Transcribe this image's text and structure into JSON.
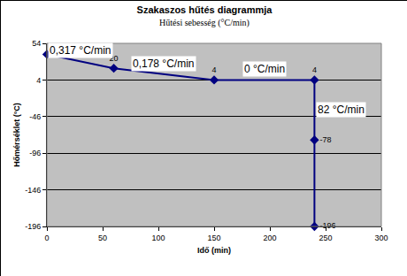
{
  "chart_data": {
    "type": "line",
    "title": "Szakaszos hűtés diagrammja",
    "subtitle": "Hűtési sebesség (°C/min)",
    "x_label": "Idő (min)",
    "y_label": "Hőmérséklet (°C)",
    "x": [
      0,
      60,
      150,
      240,
      240,
      240
    ],
    "values": [
      39,
      20,
      4,
      4,
      -78,
      -196
    ],
    "color": "#000080",
    "marker": "diamond",
    "line_style": "solid",
    "data_labels": true,
    "annotations": [
      "0,317 °C/min",
      "0,178 °C/min",
      "0 °C/min",
      "82 °C/min"
    ],
    "xlim": [
      0,
      300
    ],
    "xticks": [
      0,
      50,
      100,
      150,
      200,
      250,
      300
    ],
    "ylim": [
      -196,
      54
    ],
    "yticks": [
      -196,
      -146,
      -96,
      -46,
      4,
      54
    ],
    "grid": true
  }
}
